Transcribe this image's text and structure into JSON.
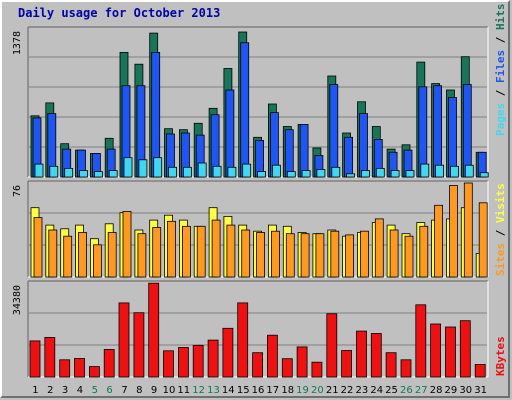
{
  "title": "Daily usage for October 2013",
  "colors": {
    "hits": "#18755a",
    "files": "#1f55f0",
    "pages": "#40d8f0",
    "visits": "#ffff44",
    "sites": "#ff9922",
    "kbytes": "#ee1111",
    "weekend_label": "#117755",
    "weekday_label": "#000000"
  },
  "chart_data": [
    {
      "type": "bar",
      "title": "Pages / Files / Hits",
      "max_label": "1378",
      "ylim": [
        0,
        1378
      ],
      "categories": [
        "1",
        "2",
        "3",
        "4",
        "5",
        "6",
        "7",
        "8",
        "9",
        "10",
        "11",
        "12",
        "13",
        "14",
        "15",
        "16",
        "17",
        "18",
        "19",
        "20",
        "21",
        "22",
        "23",
        "24",
        "25",
        "26",
        "27",
        "28",
        "29",
        "30",
        "31"
      ],
      "weekend_days": [
        "5",
        "6",
        "12",
        "13",
        "19",
        "20",
        "26",
        "27"
      ],
      "series": [
        {
          "name": "Hits",
          "values": [
            570,
            690,
            310,
            250,
            220,
            360,
            1160,
            1050,
            1340,
            450,
            440,
            500,
            640,
            1010,
            1350,
            370,
            680,
            470,
            490,
            270,
            940,
            410,
            700,
            470,
            260,
            300,
            1070,
            870,
            810,
            1120,
            230
          ]
        },
        {
          "name": "Files",
          "values": [
            550,
            590,
            260,
            250,
            220,
            260,
            850,
            850,
            1160,
            400,
            410,
            390,
            580,
            810,
            1250,
            340,
            600,
            440,
            490,
            200,
            860,
            370,
            590,
            350,
            230,
            250,
            840,
            850,
            740,
            860,
            230
          ]
        },
        {
          "name": "Pages",
          "values": [
            120,
            100,
            80,
            60,
            50,
            60,
            180,
            160,
            180,
            90,
            90,
            130,
            100,
            90,
            120,
            50,
            110,
            50,
            60,
            70,
            90,
            30,
            60,
            80,
            60,
            60,
            120,
            110,
            100,
            110,
            40
          ]
        }
      ]
    },
    {
      "type": "bar",
      "title": "Sites / Visits",
      "max_label": "76",
      "ylim": [
        0,
        76
      ],
      "categories": [
        "1",
        "2",
        "3",
        "4",
        "5",
        "6",
        "7",
        "8",
        "9",
        "10",
        "11",
        "12",
        "13",
        "14",
        "15",
        "16",
        "17",
        "18",
        "19",
        "20",
        "21",
        "22",
        "23",
        "24",
        "25",
        "26",
        "27",
        "28",
        "29",
        "30",
        "31"
      ],
      "series": [
        {
          "name": "Visits",
          "values": [
            56,
            42,
            39,
            42,
            31,
            43,
            52,
            38,
            46,
            50,
            46,
            41,
            56,
            49,
            42,
            37,
            42,
            41,
            36,
            35,
            38,
            33,
            36,
            44,
            42,
            35,
            44,
            46,
            47,
            56,
            19
          ]
        },
        {
          "name": "Sites",
          "values": [
            48,
            38,
            33,
            36,
            26,
            36,
            53,
            35,
            40,
            45,
            41,
            41,
            46,
            42,
            38,
            36,
            37,
            35,
            35,
            35,
            37,
            34,
            37,
            47,
            38,
            33,
            41,
            58,
            74,
            76,
            60
          ]
        }
      ]
    },
    {
      "type": "bar",
      "title": "KBytes",
      "max_label": "34380",
      "ylim": [
        0,
        34380
      ],
      "categories": [
        "1",
        "2",
        "3",
        "4",
        "5",
        "6",
        "7",
        "8",
        "9",
        "10",
        "11",
        "12",
        "13",
        "14",
        "15",
        "16",
        "17",
        "18",
        "19",
        "20",
        "21",
        "22",
        "23",
        "24",
        "25",
        "26",
        "27",
        "28",
        "29",
        "30",
        "31"
      ],
      "series": [
        {
          "name": "KBytes",
          "values": [
            13200,
            14500,
            6300,
            6800,
            3800,
            10100,
            27100,
            23500,
            34300,
            9600,
            10800,
            11600,
            13500,
            17800,
            27100,
            8900,
            15300,
            6700,
            11000,
            5400,
            23100,
            9700,
            16800,
            15900,
            8900,
            6300,
            26400,
            19400,
            18300,
            20600,
            4600
          ]
        }
      ]
    }
  ]
}
